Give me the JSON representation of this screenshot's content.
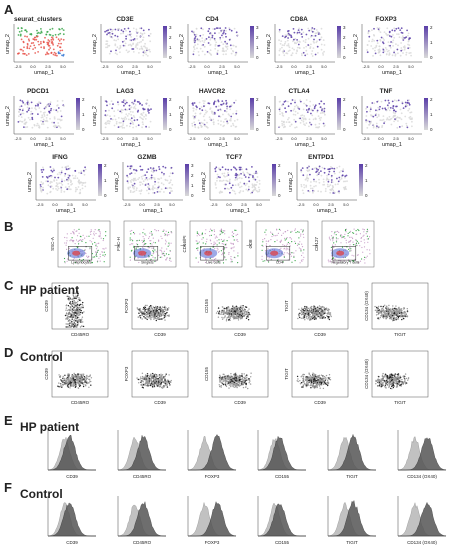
{
  "figure": {
    "panel_letters": [
      "A",
      "B",
      "C",
      "D",
      "E",
      "F"
    ],
    "conditions": {
      "c": "HP patient",
      "d": "Control",
      "e": "HP patient",
      "f": "Control"
    }
  },
  "umap": {
    "x_label": "umap_1",
    "y_label": "umap_2",
    "tick_labels": [
      "-2.5",
      "0.0",
      "2.5",
      "5.0"
    ],
    "first_title": "seurat_clusters",
    "genes": [
      {
        "title": "CD3E",
        "scale": [
          "3",
          "2",
          "1",
          "0"
        ]
      },
      {
        "title": "CD4",
        "scale": [
          "3",
          "2",
          "1",
          "0"
        ]
      },
      {
        "title": "CD8A",
        "scale": [
          "3",
          "2",
          "1",
          "0"
        ]
      },
      {
        "title": "FOXP3",
        "scale": [
          "2",
          "1",
          "0"
        ]
      },
      {
        "title": "PDCD1",
        "scale": [
          "2",
          "1",
          "0"
        ]
      },
      {
        "title": "LAG3",
        "scale": [
          "2",
          "1",
          "0"
        ]
      },
      {
        "title": "HAVCR2",
        "scale": [
          "2",
          "1",
          "0"
        ]
      },
      {
        "title": "CTLA4",
        "scale": [
          "2",
          "1",
          "0"
        ]
      },
      {
        "title": "TNF",
        "scale": [
          "2",
          "1",
          "0"
        ]
      },
      {
        "title": "IFNG",
        "scale": [
          "2",
          "1",
          "0"
        ]
      },
      {
        "title": "GZMB",
        "scale": [
          "3",
          "2",
          "1",
          "0"
        ]
      },
      {
        "title": "TCF7",
        "scale": [
          "2",
          "1",
          "0"
        ]
      },
      {
        "title": "ENTPD1",
        "scale": [
          "2",
          "1",
          "0"
        ]
      }
    ],
    "cluster_colors": [
      "#e8544b",
      "#3aa64a",
      "#3a7bd5"
    ],
    "scale_colors": [
      "#d9d9d9",
      "#5a3ea8"
    ]
  },
  "gating": {
    "y_labels": [
      "SSC-A",
      "FSC-H",
      "CD16/PI",
      "CD8",
      "CD127"
    ],
    "x_labels": [
      "",
      "",
      "",
      "",
      ""
    ],
    "gate_names": [
      "Lymphocytes",
      "Singlets",
      "Live cells",
      "CD4",
      "Regulatory T cells"
    ],
    "arrow": "→"
  },
  "scatter_rows": {
    "c": {
      "y": [
        "CD39",
        "FOXP3",
        "CD155",
        "TIGIT",
        "CD134 (OX40)"
      ],
      "x": [
        "CD45RO",
        "CD39",
        "CD39",
        "CD39",
        "TIGIT"
      ]
    },
    "d": {
      "y": [
        "CD39",
        "FOXP3",
        "CD155",
        "TIGIT",
        "CD134 (OX40)"
      ],
      "x": [
        "CD45RO",
        "CD39",
        "CD39",
        "CD39",
        "TIGIT"
      ]
    }
  },
  "histograms": {
    "labels": [
      "CD39",
      "CD45RO",
      "FOXP3",
      "CD155",
      "TIGIT",
      "CD134 (OX40)"
    ],
    "fill_dark": "#555555",
    "fill_light": "#bbbbbb"
  }
}
